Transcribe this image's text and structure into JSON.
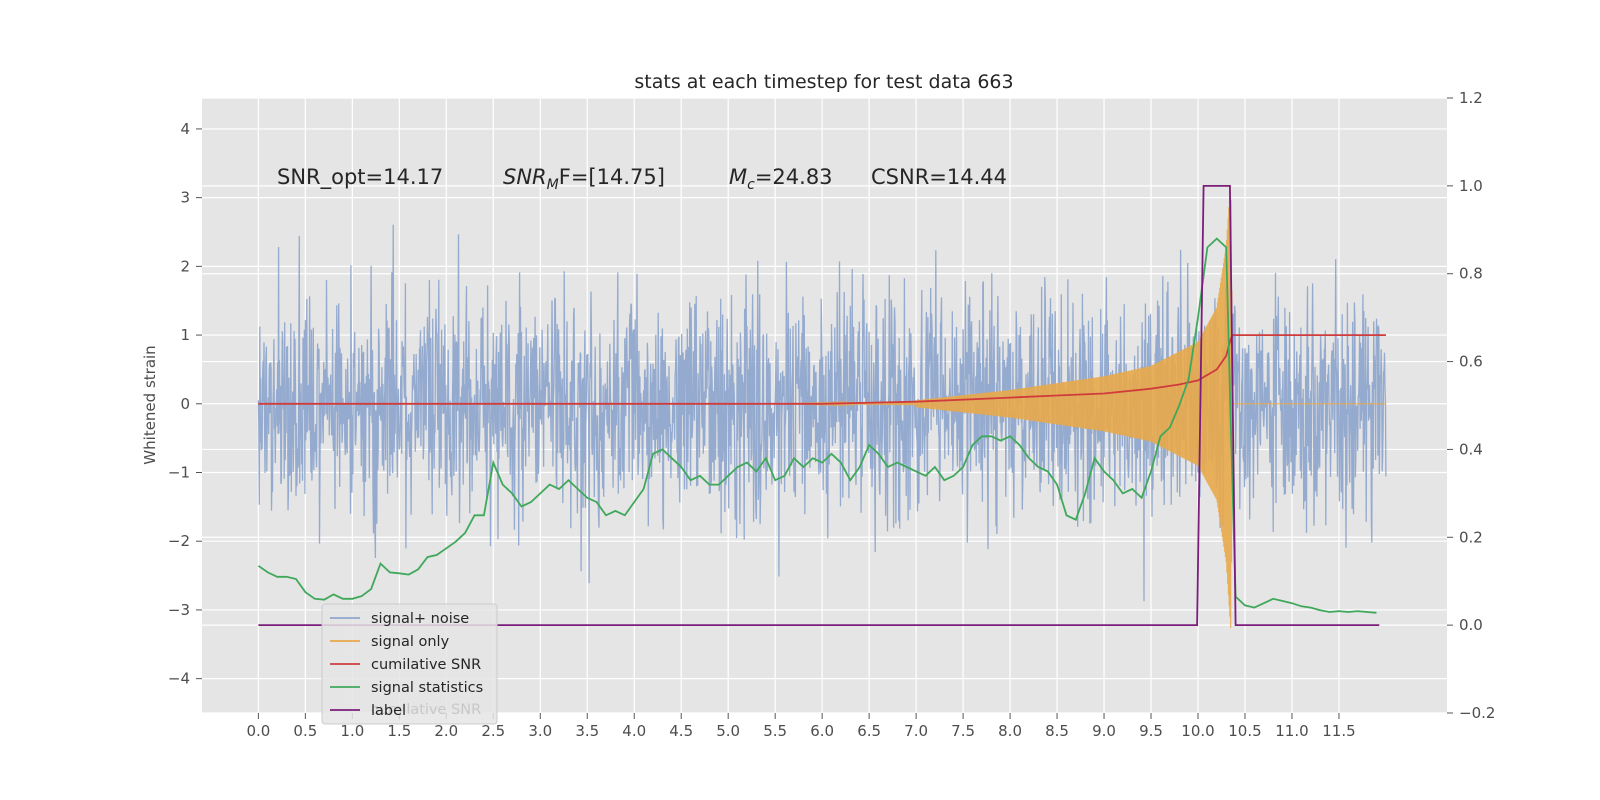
{
  "chart_data": {
    "type": "line",
    "title": "stats at each timestep for test data 663",
    "xlabel": "",
    "ylabel": "Whitened strain",
    "xlim": [
      -0.6,
      12.65
    ],
    "ylim": [
      -4.5,
      4.45
    ],
    "y2lim": [
      -0.2,
      1.2
    ],
    "xticks": [
      "0.0",
      "0.5",
      "1.0",
      "1.5",
      "2.0",
      "2.5",
      "3.0",
      "3.5",
      "4.0",
      "4.5",
      "5.0",
      "5.5",
      "6.0",
      "6.5",
      "7.0",
      "7.5",
      "8.0",
      "8.5",
      "9.0",
      "9.5",
      "10.0",
      "10.5",
      "11.0",
      "11.5"
    ],
    "yticks": [
      "4",
      "3",
      "2",
      "1",
      "0",
      "−1",
      "−2",
      "−3",
      "−4"
    ],
    "y2ticks": [
      "1.2",
      "1.0",
      "0.8",
      "0.6",
      "0.4",
      "0.2",
      "0.0",
      "−0.2"
    ],
    "grid": true,
    "legend_position": "lower-left",
    "annotations": {
      "snr_opt": "SNR_opt=14.17",
      "snr_mf_base": "SNR",
      "snr_mf_sub": "M",
      "snr_mf_tail": "F=[14.75]",
      "mc_base": "M",
      "mc_sub": "c",
      "mc_tail": "=24.83",
      "csnr": "CSNR=14.44"
    },
    "series": [
      {
        "name": "signal+ noise",
        "color": "#8fa6cc",
        "axis": "left",
        "description_range": [
          0.0,
          12.0
        ]
      },
      {
        "name": "signal only",
        "color": "#e8a84a",
        "axis": "left",
        "envelope": {
          "x": [
            7.0,
            8.0,
            9.0,
            9.5,
            10.0,
            10.2,
            10.3,
            10.35,
            10.37
          ],
          "amp": [
            0.05,
            0.2,
            0.4,
            0.55,
            0.9,
            1.4,
            2.3,
            3.3,
            0
          ]
        }
      },
      {
        "name": "cumilative SNR",
        "color": "#d03c3c",
        "axis": "left",
        "x": [
          0.0,
          6.0,
          7.0,
          8.0,
          8.5,
          9.0,
          9.5,
          9.8,
          10.0,
          10.2,
          10.3,
          10.35,
          10.37,
          12.0
        ],
        "y": [
          0.0,
          0.0,
          0.03,
          0.09,
          0.12,
          0.15,
          0.22,
          0.28,
          0.34,
          0.5,
          0.7,
          0.95,
          1.0,
          1.0
        ]
      },
      {
        "name": "signal statistics",
        "color": "#3fa85a",
        "axis": "right",
        "x": [
          0.0,
          0.1,
          0.2,
          0.3,
          0.4,
          0.5,
          0.6,
          0.7,
          0.8,
          0.9,
          1.0,
          1.1,
          1.2,
          1.3,
          1.4,
          1.5,
          1.6,
          1.7,
          1.8,
          1.9,
          2.0,
          2.1,
          2.2,
          2.3,
          2.4,
          2.5,
          2.6,
          2.7,
          2.8,
          2.9,
          3.0,
          3.1,
          3.2,
          3.3,
          3.4,
          3.5,
          3.6,
          3.7,
          3.8,
          3.9,
          4.0,
          4.1,
          4.2,
          4.3,
          4.4,
          4.5,
          4.6,
          4.7,
          4.8,
          4.9,
          5.0,
          5.1,
          5.2,
          5.3,
          5.4,
          5.5,
          5.6,
          5.7,
          5.8,
          5.9,
          6.0,
          6.1,
          6.2,
          6.3,
          6.4,
          6.5,
          6.6,
          6.7,
          6.8,
          6.9,
          7.0,
          7.1,
          7.2,
          7.3,
          7.4,
          7.5,
          7.6,
          7.7,
          7.8,
          7.9,
          8.0,
          8.1,
          8.2,
          8.3,
          8.4,
          8.5,
          8.6,
          8.7,
          8.8,
          8.9,
          9.0,
          9.1,
          9.2,
          9.3,
          9.4,
          9.5,
          9.6,
          9.7,
          9.8,
          9.9,
          10.0,
          10.1,
          10.2,
          10.3,
          10.35,
          10.4,
          10.5,
          10.6,
          10.7,
          10.8,
          10.9,
          11.0,
          11.1,
          11.2,
          11.3,
          11.4,
          11.5,
          11.6,
          11.7,
          11.8,
          11.9
        ],
        "y": [
          0.135,
          0.12,
          0.11,
          0.11,
          0.105,
          0.075,
          0.06,
          0.058,
          0.07,
          0.06,
          0.06,
          0.066,
          0.082,
          0.14,
          0.12,
          0.118,
          0.115,
          0.127,
          0.155,
          0.16,
          0.175,
          0.19,
          0.21,
          0.25,
          0.25,
          0.37,
          0.32,
          0.3,
          0.27,
          0.28,
          0.3,
          0.32,
          0.31,
          0.33,
          0.31,
          0.29,
          0.28,
          0.25,
          0.26,
          0.25,
          0.28,
          0.31,
          0.39,
          0.4,
          0.38,
          0.36,
          0.33,
          0.34,
          0.32,
          0.32,
          0.34,
          0.36,
          0.37,
          0.35,
          0.38,
          0.33,
          0.34,
          0.38,
          0.36,
          0.38,
          0.37,
          0.39,
          0.37,
          0.33,
          0.36,
          0.41,
          0.39,
          0.36,
          0.37,
          0.36,
          0.35,
          0.34,
          0.36,
          0.33,
          0.34,
          0.36,
          0.41,
          0.43,
          0.43,
          0.42,
          0.43,
          0.41,
          0.38,
          0.36,
          0.35,
          0.32,
          0.25,
          0.24,
          0.3,
          0.38,
          0.35,
          0.33,
          0.3,
          0.31,
          0.29,
          0.35,
          0.43,
          0.45,
          0.5,
          0.56,
          0.7,
          0.86,
          0.88,
          0.86,
          0.45,
          0.065,
          0.045,
          0.04,
          0.05,
          0.06,
          0.055,
          0.05,
          0.043,
          0.04,
          0.034,
          0.03,
          0.032,
          0.03,
          0.032,
          0.03,
          0.028
        ]
      },
      {
        "name": "label",
        "color": "#7b1e7b",
        "axis": "right",
        "x": [
          0.0,
          9.99,
          10.06,
          10.34,
          10.4,
          11.93
        ],
        "y": [
          0.0,
          0.0,
          1.0,
          1.0,
          0.0,
          0.0
        ]
      }
    ],
    "legend_ghost_text": "cumilative SNR"
  }
}
